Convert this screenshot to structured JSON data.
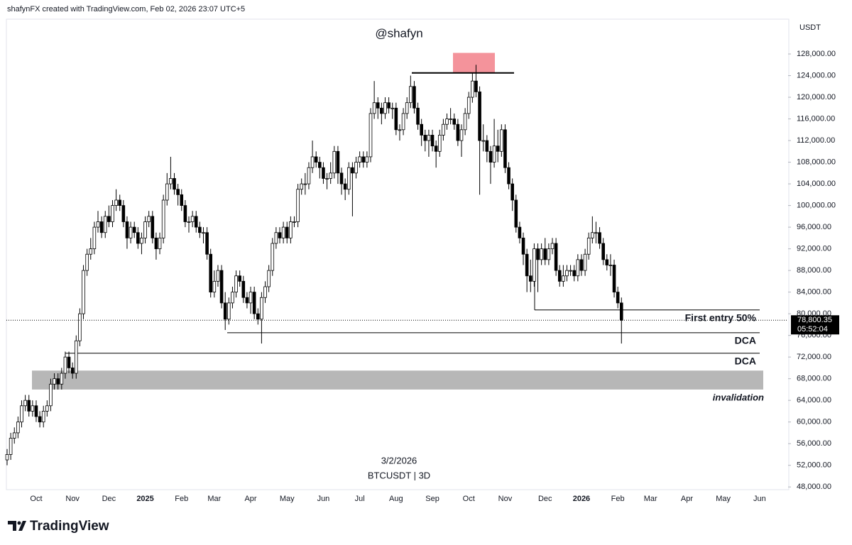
{
  "header": {
    "credit": "shafynFX created with TradingView.com, Feb 02, 2026 23:07 UTC+5",
    "logo": "TradingView"
  },
  "chart_data": {
    "type": "candlestick",
    "title": "@shafyn",
    "date": "3/2/2026",
    "symbol": "BTCUSDT | 3D",
    "y_unit": "USDT",
    "up_color": "#ffffff",
    "down_color": "#000000",
    "wick_color": "#000000",
    "categories": [
      null,
      null,
      null,
      null,
      null,
      null,
      null,
      null,
      "Oct",
      null,
      null,
      null,
      null,
      null,
      null,
      null,
      null,
      null,
      "Nov",
      null,
      null,
      null,
      null,
      null,
      null,
      null,
      null,
      null,
      "Dec",
      null,
      null,
      null,
      null,
      null,
      null,
      null,
      null,
      null,
      "2025",
      null,
      null,
      null,
      null,
      null,
      null,
      null,
      null,
      null,
      "Feb",
      null,
      null,
      null,
      null,
      null,
      null,
      null,
      null,
      "Mar",
      null,
      null,
      null,
      null,
      null,
      null,
      null,
      null,
      null,
      "Apr",
      null,
      null,
      null,
      null,
      null,
      null,
      null,
      null,
      null,
      "May",
      null,
      null,
      null,
      null,
      null,
      null,
      null,
      null,
      null,
      "Jun",
      null,
      null,
      null,
      null,
      null,
      null,
      null,
      null,
      null,
      "Jul",
      null,
      null,
      null,
      null,
      null,
      null,
      null,
      null,
      null,
      "Aug",
      null,
      null,
      null,
      null,
      null,
      null,
      null,
      null,
      null,
      "Sep",
      null,
      null,
      null,
      null,
      null,
      null,
      null,
      null,
      null,
      "Oct",
      null,
      null,
      null,
      null,
      null,
      null,
      null,
      null,
      null,
      "Nov",
      null,
      null,
      null,
      null,
      null,
      null,
      null,
      null,
      null,
      null,
      "Dec",
      null,
      null,
      null,
      null,
      null,
      null,
      null,
      null,
      null,
      "2026",
      null,
      null,
      null,
      null,
      null,
      null,
      null,
      null,
      null,
      "Feb",
      null,
      null,
      null,
      null,
      null,
      null,
      null,
      null,
      "Mar",
      null,
      null,
      null,
      null,
      null,
      null,
      null,
      null,
      null,
      "Apr",
      null,
      null,
      null,
      null,
      null,
      null,
      null,
      null,
      null,
      "May",
      null,
      null,
      null,
      null,
      null,
      null,
      null,
      null,
      null,
      "Jun",
      null,
      null,
      null,
      null,
      null,
      null
    ],
    "open": [
      53000,
      54000,
      57000,
      58000,
      60000,
      63000,
      64000,
      62000,
      63000,
      61000,
      60000,
      62000,
      63000,
      67000,
      68000,
      67000,
      69000,
      72000,
      70000,
      69000,
      75000,
      80000,
      88000,
      91000,
      92000,
      96000,
      97000,
      95000,
      98000,
      97000,
      100000,
      101000,
      100000,
      97000,
      94000,
      96000,
      95000,
      93000,
      94000,
      97000,
      98000,
      94000,
      92000,
      94000,
      101000,
      104000,
      105000,
      103000,
      102000,
      100000,
      97000,
      97000,
      98000,
      96000,
      95000,
      95000,
      91000,
      84000,
      86000,
      88000,
      82000,
      79000,
      82000,
      84000,
      87000,
      86000,
      83000,
      82000,
      84000,
      80000,
      79000,
      83000,
      85000,
      88000,
      93000,
      95000,
      94000,
      96000,
      94000,
      97000,
      97000,
      103000,
      104000,
      104000,
      107000,
      109000,
      108000,
      107000,
      105000,
      105000,
      106000,
      110000,
      106000,
      104000,
      103000,
      107000,
      106000,
      108000,
      109000,
      108000,
      109000,
      117000,
      119000,
      118000,
      117000,
      119000,
      118000,
      118000,
      114000,
      114000,
      117000,
      119000,
      122000,
      118000,
      115000,
      113000,
      112000,
      113000,
      111000,
      110000,
      113000,
      115000,
      116000,
      116000,
      115000,
      112000,
      114000,
      117000,
      120000,
      123000,
      121000,
      112000,
      112000,
      110000,
      108000,
      111000,
      110000,
      114000,
      107000,
      104000,
      101000,
      96000,
      94000,
      91000,
      87000,
      86000,
      92000,
      90000,
      92000,
      90000,
      92000,
      93000,
      88000,
      86000,
      87000,
      88000,
      88000,
      87000,
      90000,
      88000,
      91000,
      94000,
      95000,
      95000,
      93000,
      90000,
      89000,
      89000,
      84000,
      82000,
      null,
      null,
      null,
      null,
      null,
      null,
      null,
      null,
      null,
      null,
      null,
      null,
      null,
      null,
      null,
      null,
      null,
      null,
      null,
      null,
      null,
      null,
      null,
      null,
      null,
      null,
      null,
      null,
      null,
      null,
      null,
      null,
      null,
      null,
      null,
      null,
      null,
      null,
      null,
      null,
      null,
      null,
      null,
      null
    ],
    "high": [
      55000,
      58000,
      59000,
      61000,
      64000,
      65000,
      65000,
      64000,
      64000,
      62000,
      63000,
      64000,
      68000,
      69000,
      69000,
      70000,
      73000,
      73000,
      71000,
      76000,
      81000,
      89000,
      92000,
      94000,
      97000,
      99000,
      98000,
      99000,
      100000,
      101000,
      103000,
      102000,
      101000,
      98000,
      97000,
      97000,
      96000,
      95000,
      98000,
      99000,
      99000,
      95000,
      95000,
      102000,
      106000,
      109000,
      106000,
      104000,
      103000,
      101000,
      98000,
      99000,
      99000,
      97000,
      96000,
      96000,
      92000,
      88000,
      89000,
      89000,
      84000,
      83000,
      85000,
      88000,
      88000,
      87000,
      84000,
      85000,
      85000,
      81000,
      84000,
      86000,
      89000,
      94000,
      96000,
      96000,
      97000,
      97000,
      98000,
      98000,
      104000,
      105000,
      106000,
      108000,
      112000,
      110000,
      109000,
      108000,
      106000,
      108000,
      111000,
      111000,
      107000,
      105000,
      108000,
      108000,
      109000,
      110000,
      110000,
      110000,
      118000,
      123000,
      120000,
      119000,
      120000,
      120000,
      119000,
      119000,
      115000,
      118000,
      120000,
      124000,
      123000,
      119000,
      116000,
      114000,
      114000,
      114000,
      112000,
      114000,
      116000,
      117000,
      118000,
      117000,
      116000,
      115000,
      118000,
      121000,
      124500,
      126000,
      122000,
      115000,
      113000,
      111000,
      116000,
      114000,
      115000,
      115000,
      108000,
      105000,
      102000,
      97000,
      95000,
      92000,
      90000,
      93000,
      93000,
      93000,
      94000,
      93000,
      94000,
      94000,
      89000,
      89000,
      89000,
      89000,
      89000,
      91000,
      91000,
      92000,
      95000,
      98000,
      97000,
      96000,
      94000,
      91000,
      91000,
      90000,
      85000,
      83000,
      null,
      null,
      null,
      null,
      null,
      null,
      null,
      null,
      null,
      null,
      null,
      null,
      null,
      null,
      null,
      null,
      null,
      null,
      null,
      null,
      null,
      null,
      null,
      null,
      null,
      null,
      null,
      null,
      null,
      null,
      null,
      null,
      null,
      null,
      null,
      null,
      null,
      null,
      null,
      null,
      null,
      null,
      null,
      null
    ],
    "low": [
      52000,
      53000,
      56000,
      57000,
      59000,
      62000,
      61000,
      61000,
      60000,
      59000,
      59000,
      61000,
      62000,
      66000,
      66000,
      66000,
      68000,
      69000,
      68000,
      68000,
      74000,
      79000,
      87000,
      90000,
      91000,
      95000,
      94000,
      94000,
      96000,
      96000,
      99000,
      99000,
      96000,
      92000,
      93000,
      94000,
      92000,
      91000,
      93000,
      96000,
      93000,
      90000,
      91000,
      93000,
      100000,
      103000,
      102000,
      100000,
      99000,
      96000,
      95000,
      96000,
      95000,
      94000,
      93000,
      90000,
      83000,
      83000,
      85000,
      81000,
      77000,
      78000,
      81000,
      83000,
      85000,
      82000,
      81000,
      80000,
      79000,
      78000,
      74500,
      82000,
      84000,
      87000,
      92000,
      93000,
      93000,
      93000,
      93000,
      96000,
      96000,
      102000,
      102000,
      103000,
      106000,
      107000,
      105000,
      104000,
      103000,
      104000,
      105000,
      104000,
      102000,
      101000,
      102000,
      98000,
      105000,
      107000,
      107000,
      107000,
      108000,
      116000,
      116000,
      115000,
      116000,
      117000,
      116000,
      113000,
      112000,
      113000,
      116000,
      118000,
      117000,
      114000,
      111000,
      110000,
      109000,
      110000,
      107000,
      109000,
      112000,
      114000,
      115000,
      114000,
      111000,
      109000,
      113000,
      116000,
      119000,
      120000,
      102000,
      110000,
      108000,
      104000,
      107000,
      108000,
      109000,
      106000,
      103000,
      99000,
      95000,
      93000,
      89000,
      84000,
      84000,
      85000,
      84000,
      89000,
      89000,
      89000,
      91000,
      87000,
      85000,
      85000,
      86000,
      87000,
      86000,
      86000,
      87000,
      87000,
      90000,
      93000,
      93000,
      92000,
      89000,
      88000,
      87000,
      83000,
      81000,
      74500,
      null,
      null,
      null,
      null,
      null,
      null,
      null,
      null,
      null,
      null,
      null,
      null,
      null,
      null,
      null,
      null,
      null,
      null,
      null,
      null,
      null,
      null,
      null,
      null,
      null,
      null,
      null,
      null,
      null,
      null,
      null,
      null,
      null,
      null,
      null,
      null,
      null,
      null,
      null,
      null,
      null,
      null,
      null,
      null
    ],
    "close": [
      54000,
      57000,
      58000,
      60000,
      63000,
      64000,
      62000,
      63000,
      61000,
      60000,
      62000,
      63000,
      67000,
      68000,
      67000,
      69000,
      72000,
      70000,
      69000,
      75000,
      80000,
      88000,
      91000,
      92000,
      96000,
      97000,
      95000,
      98000,
      97000,
      100000,
      101000,
      100000,
      97000,
      94000,
      96000,
      95000,
      93000,
      94000,
      97000,
      98000,
      94000,
      92000,
      94000,
      101000,
      104000,
      105000,
      103000,
      102000,
      100000,
      97000,
      97000,
      98000,
      96000,
      95000,
      95000,
      91000,
      84000,
      86000,
      88000,
      82000,
      79000,
      82000,
      84000,
      87000,
      86000,
      83000,
      82000,
      84000,
      80000,
      79000,
      83000,
      85000,
      88000,
      93000,
      95000,
      94000,
      96000,
      94000,
      97000,
      97000,
      103000,
      104000,
      104000,
      107000,
      109000,
      108000,
      107000,
      105000,
      105000,
      106000,
      110000,
      106000,
      104000,
      103000,
      107000,
      106000,
      108000,
      109000,
      108000,
      109000,
      117000,
      119000,
      118000,
      117000,
      119000,
      118000,
      118000,
      114000,
      114000,
      117000,
      119000,
      122000,
      118000,
      115000,
      113000,
      112000,
      113000,
      111000,
      110000,
      113000,
      115000,
      116000,
      116000,
      115000,
      112000,
      114000,
      117000,
      120000,
      123000,
      121000,
      112000,
      112000,
      110000,
      108000,
      111000,
      110000,
      114000,
      107000,
      104000,
      101000,
      96000,
      94000,
      91000,
      87000,
      86000,
      92000,
      90000,
      92000,
      90000,
      92000,
      93000,
      88000,
      86000,
      87000,
      88000,
      88000,
      87000,
      90000,
      88000,
      91000,
      94000,
      95000,
      95000,
      93000,
      90000,
      89000,
      89000,
      84000,
      82000,
      78800.35,
      null,
      null,
      null,
      null,
      null,
      null,
      null,
      null,
      null,
      null,
      null,
      null,
      null,
      null,
      null,
      null,
      null,
      null,
      null,
      null,
      null,
      null,
      null,
      null,
      null,
      null,
      null,
      null,
      null,
      null,
      null,
      null,
      null,
      null,
      null,
      null,
      null,
      null,
      null,
      null,
      null,
      null,
      null,
      null
    ],
    "last_price": {
      "value": 78800.35,
      "label": "78,800.35"
    },
    "countdown": "05:52:04",
    "ylim": [
      47500,
      134300
    ],
    "yticks": [
      {
        "value": 48000,
        "label": "48,000.00"
      },
      {
        "value": 52000,
        "label": "52,000.00"
      },
      {
        "value": 56000,
        "label": "56,000.00"
      },
      {
        "value": 60000,
        "label": "60,000.00"
      },
      {
        "value": 64000,
        "label": "64,000.00"
      },
      {
        "value": 68000,
        "label": "68,000.00"
      },
      {
        "value": 72000,
        "label": "72,000.00"
      },
      {
        "value": 76000,
        "label": "76,000.00"
      },
      {
        "value": 80000,
        "label": "80,000.00"
      },
      {
        "value": 84000,
        "label": "84,000.00"
      },
      {
        "value": 88000,
        "label": "88,000.00"
      },
      {
        "value": 92000,
        "label": "92,000.00"
      },
      {
        "value": 96000,
        "label": "96,000.00"
      },
      {
        "value": 100000,
        "label": "100,000.00"
      },
      {
        "value": 104000,
        "label": "104,000.00"
      },
      {
        "value": 108000,
        "label": "108,000.00"
      },
      {
        "value": 112000,
        "label": "112,000.00"
      },
      {
        "value": 116000,
        "label": "116,000.00"
      },
      {
        "value": 120000,
        "label": "120,000.00"
      },
      {
        "value": 124000,
        "label": "124,000.00"
      },
      {
        "value": 128000,
        "label": "128,000.00"
      }
    ],
    "grid": false,
    "levels": [
      {
        "label": "First entry 50%",
        "value": 80700
      },
      {
        "label": "DCA",
        "value": 76500
      },
      {
        "label": "DCA",
        "value": 72700
      }
    ],
    "zone": {
      "label": "invalidation",
      "from": 66000,
      "to": 69500,
      "color": "#b7b7b7"
    },
    "resistance": 124500,
    "supply_zone": {
      "from": 124500,
      "to": 128200,
      "color": "#f4939b"
    }
  }
}
